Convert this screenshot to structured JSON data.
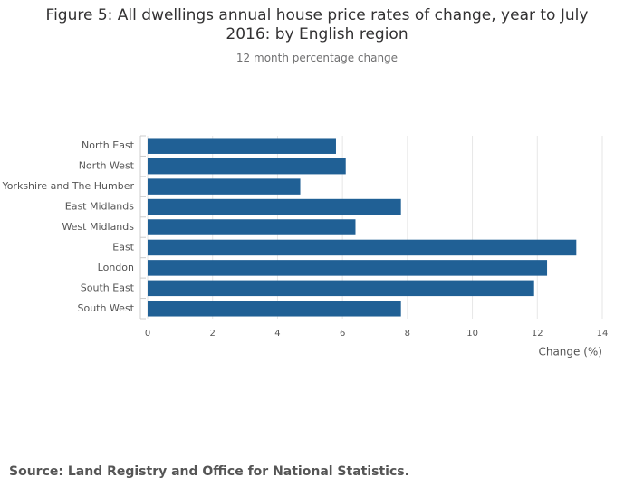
{
  "chart_data": {
    "type": "bar",
    "orientation": "horizontal",
    "title": "Figure 5: All dwellings annual house price rates of change, year to July 2016: by English region",
    "subtitle": "12 month percentage change",
    "categories": [
      "North East",
      "North West",
      "Yorkshire and The Humber",
      "East Midlands",
      "West Midlands",
      "East",
      "London",
      "South East",
      "South West"
    ],
    "values": [
      5.8,
      6.1,
      4.7,
      7.8,
      6.4,
      13.2,
      12.3,
      11.9,
      7.8
    ],
    "color": "#206095",
    "xlabel": "Change (%)",
    "xlim": [
      0,
      14
    ],
    "xticks": [
      0,
      2,
      4,
      6,
      8,
      10,
      12,
      14
    ],
    "grid": true,
    "source": "Source: Land Registry and Office for National Statistics."
  }
}
